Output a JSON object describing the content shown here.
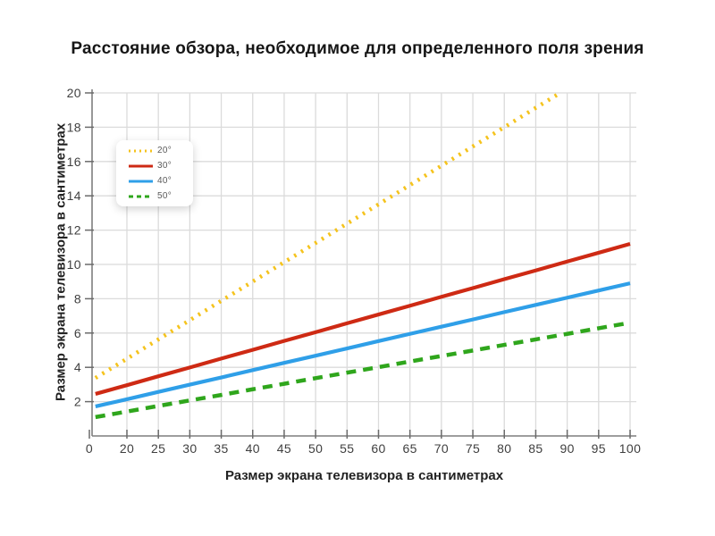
{
  "chart_data": {
    "type": "line",
    "title": "Расстояние обзора, необходимое для определенного поля зрения",
    "xlabel": "Размер экрана телевизора в сантиметрах",
    "ylabel": "Размер экрана телевизора в сантиметрах",
    "x_tick_labels": [
      "0",
      "20",
      "25",
      "30",
      "35",
      "40",
      "45",
      "50",
      "55",
      "60",
      "65",
      "70",
      "75",
      "80",
      "85",
      "90",
      "95",
      "100"
    ],
    "x_tick_values": [
      0,
      20,
      25,
      30,
      35,
      40,
      45,
      50,
      55,
      60,
      65,
      70,
      75,
      80,
      85,
      90,
      95,
      100
    ],
    "y_tick_values": [
      2,
      4,
      6,
      8,
      10,
      12,
      14,
      16,
      18,
      20
    ],
    "ylim": [
      0,
      20
    ],
    "xlim": [
      13,
      101
    ],
    "grid": true,
    "legend_position": "top-left-inset",
    "series": [
      {
        "name": "20°",
        "color": "#F5C31D",
        "style": "dotted",
        "x": [
          15,
          20,
          25,
          30,
          35,
          40,
          45,
          50,
          55,
          60,
          65,
          70,
          75,
          80,
          85,
          88.9
        ],
        "y": [
          3.38,
          4.5,
          5.63,
          6.75,
          7.88,
          9.0,
          10.13,
          11.25,
          12.38,
          13.5,
          14.63,
          15.75,
          16.88,
          18.0,
          19.13,
          20.0
        ]
      },
      {
        "name": "30°",
        "color": "#CE2A14",
        "style": "solid",
        "x": [
          15,
          20,
          25,
          30,
          35,
          40,
          45,
          50,
          55,
          60,
          65,
          70,
          75,
          80,
          85,
          90,
          95,
          100
        ],
        "y": [
          2.45,
          2.96,
          3.48,
          3.99,
          4.51,
          5.02,
          5.54,
          6.05,
          6.57,
          7.08,
          7.59,
          8.11,
          8.62,
          9.14,
          9.65,
          10.17,
          10.68,
          11.2
        ]
      },
      {
        "name": "40°",
        "color": "#2F9FE8",
        "style": "solid",
        "x": [
          15,
          20,
          25,
          30,
          35,
          40,
          45,
          50,
          55,
          60,
          65,
          70,
          75,
          80,
          85,
          90,
          95,
          100
        ],
        "y": [
          1.72,
          2.14,
          2.57,
          2.99,
          3.41,
          3.84,
          4.26,
          4.68,
          5.1,
          5.53,
          5.95,
          6.37,
          6.79,
          7.22,
          7.64,
          8.06,
          8.48,
          8.9
        ]
      },
      {
        "name": "50°",
        "color": "#2FA61C",
        "style": "dashed",
        "x": [
          15,
          20,
          25,
          30,
          35,
          40,
          45,
          50,
          55,
          60,
          65,
          70,
          75,
          80,
          85,
          90,
          95,
          100
        ],
        "y": [
          1.1,
          1.42,
          1.75,
          2.07,
          2.39,
          2.72,
          3.04,
          3.37,
          3.69,
          4.01,
          4.34,
          4.66,
          4.98,
          5.31,
          5.63,
          5.95,
          6.28,
          6.6
        ]
      }
    ],
    "colors": {
      "gridline": "#DBDBDB",
      "axis": "#7E7E7E",
      "tick_mark": "#6B6B6B",
      "tick_text": "#3F3F3F",
      "title_text": "#161616",
      "background": "#FFFFFF"
    }
  }
}
